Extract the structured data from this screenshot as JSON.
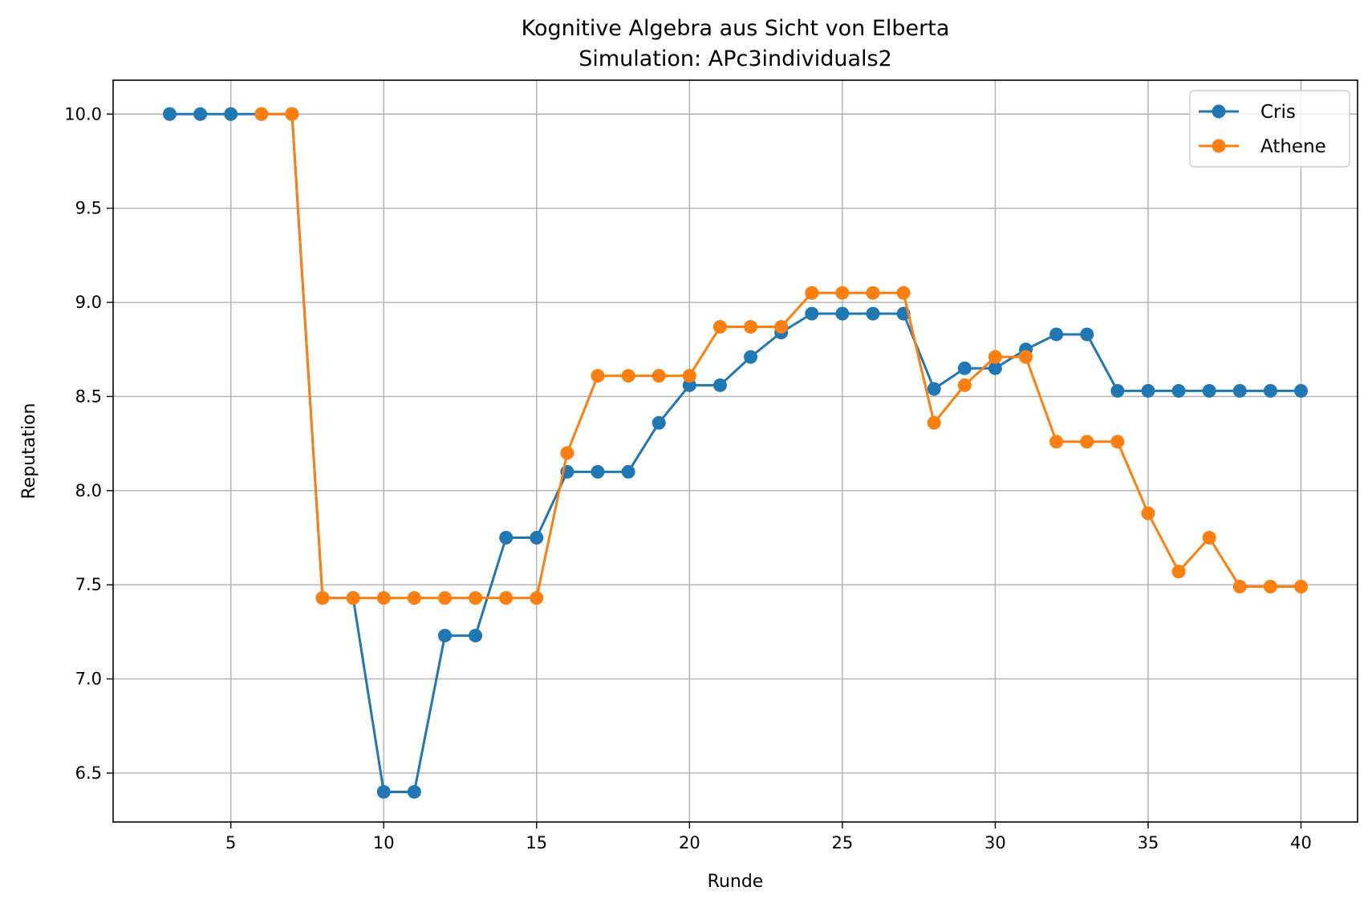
{
  "chart_data": {
    "type": "line",
    "title": "Kognitive Algebra aus Sicht von Elberta",
    "subtitle": "Simulation: APc3individuals2",
    "xlabel": "Runde",
    "ylabel": "Reputation",
    "xlim": [
      1.15,
      41.85
    ],
    "ylim": [
      6.24,
      10.18
    ],
    "xticks": [
      5,
      10,
      15,
      20,
      25,
      30,
      35,
      40
    ],
    "yticks": [
      6.5,
      7.0,
      7.5,
      8.0,
      8.5,
      9.0,
      9.5,
      10.0
    ],
    "xtick_labels": [
      "5",
      "10",
      "15",
      "20",
      "25",
      "30",
      "35",
      "40"
    ],
    "ytick_labels": [
      "6.5",
      "7.0",
      "7.5",
      "8.0",
      "8.5",
      "9.0",
      "9.5",
      "10.0"
    ],
    "grid": true,
    "legend_position": "top-right",
    "series": [
      {
        "name": "Cris",
        "color": "#1f77b4",
        "x": [
          3,
          4,
          5,
          6,
          7,
          8,
          9,
          10,
          11,
          12,
          13,
          14,
          15,
          16,
          17,
          18,
          19,
          20,
          21,
          22,
          23,
          24,
          25,
          26,
          27,
          28,
          29,
          30,
          31,
          32,
          33,
          34,
          35,
          36,
          37,
          38,
          39,
          40
        ],
        "values": [
          10.0,
          10.0,
          10.0,
          10.0,
          10.0,
          7.43,
          7.43,
          6.4,
          6.4,
          7.23,
          7.23,
          7.75,
          7.75,
          8.1,
          8.1,
          8.1,
          8.36,
          8.56,
          8.56,
          8.71,
          8.84,
          8.94,
          8.94,
          8.94,
          8.94,
          8.54,
          8.65,
          8.65,
          8.75,
          8.83,
          8.83,
          8.53,
          8.53,
          8.53,
          8.53,
          8.53,
          8.53,
          8.53
        ]
      },
      {
        "name": "Athene",
        "color": "#ff7f0e",
        "x": [
          6,
          7,
          8,
          9,
          10,
          11,
          12,
          13,
          14,
          15,
          16,
          17,
          18,
          19,
          20,
          21,
          22,
          23,
          24,
          25,
          26,
          27,
          28,
          29,
          30,
          31,
          32,
          33,
          34,
          35,
          36,
          37,
          38,
          39,
          40
        ],
        "values": [
          10.0,
          10.0,
          7.43,
          7.43,
          7.43,
          7.43,
          7.43,
          7.43,
          7.43,
          7.43,
          8.2,
          8.61,
          8.61,
          8.61,
          8.61,
          8.87,
          8.87,
          8.87,
          9.05,
          9.05,
          9.05,
          9.05,
          8.36,
          8.56,
          8.71,
          8.71,
          8.26,
          8.26,
          8.26,
          7.88,
          7.57,
          7.75,
          7.49,
          7.49,
          7.49
        ]
      }
    ]
  }
}
